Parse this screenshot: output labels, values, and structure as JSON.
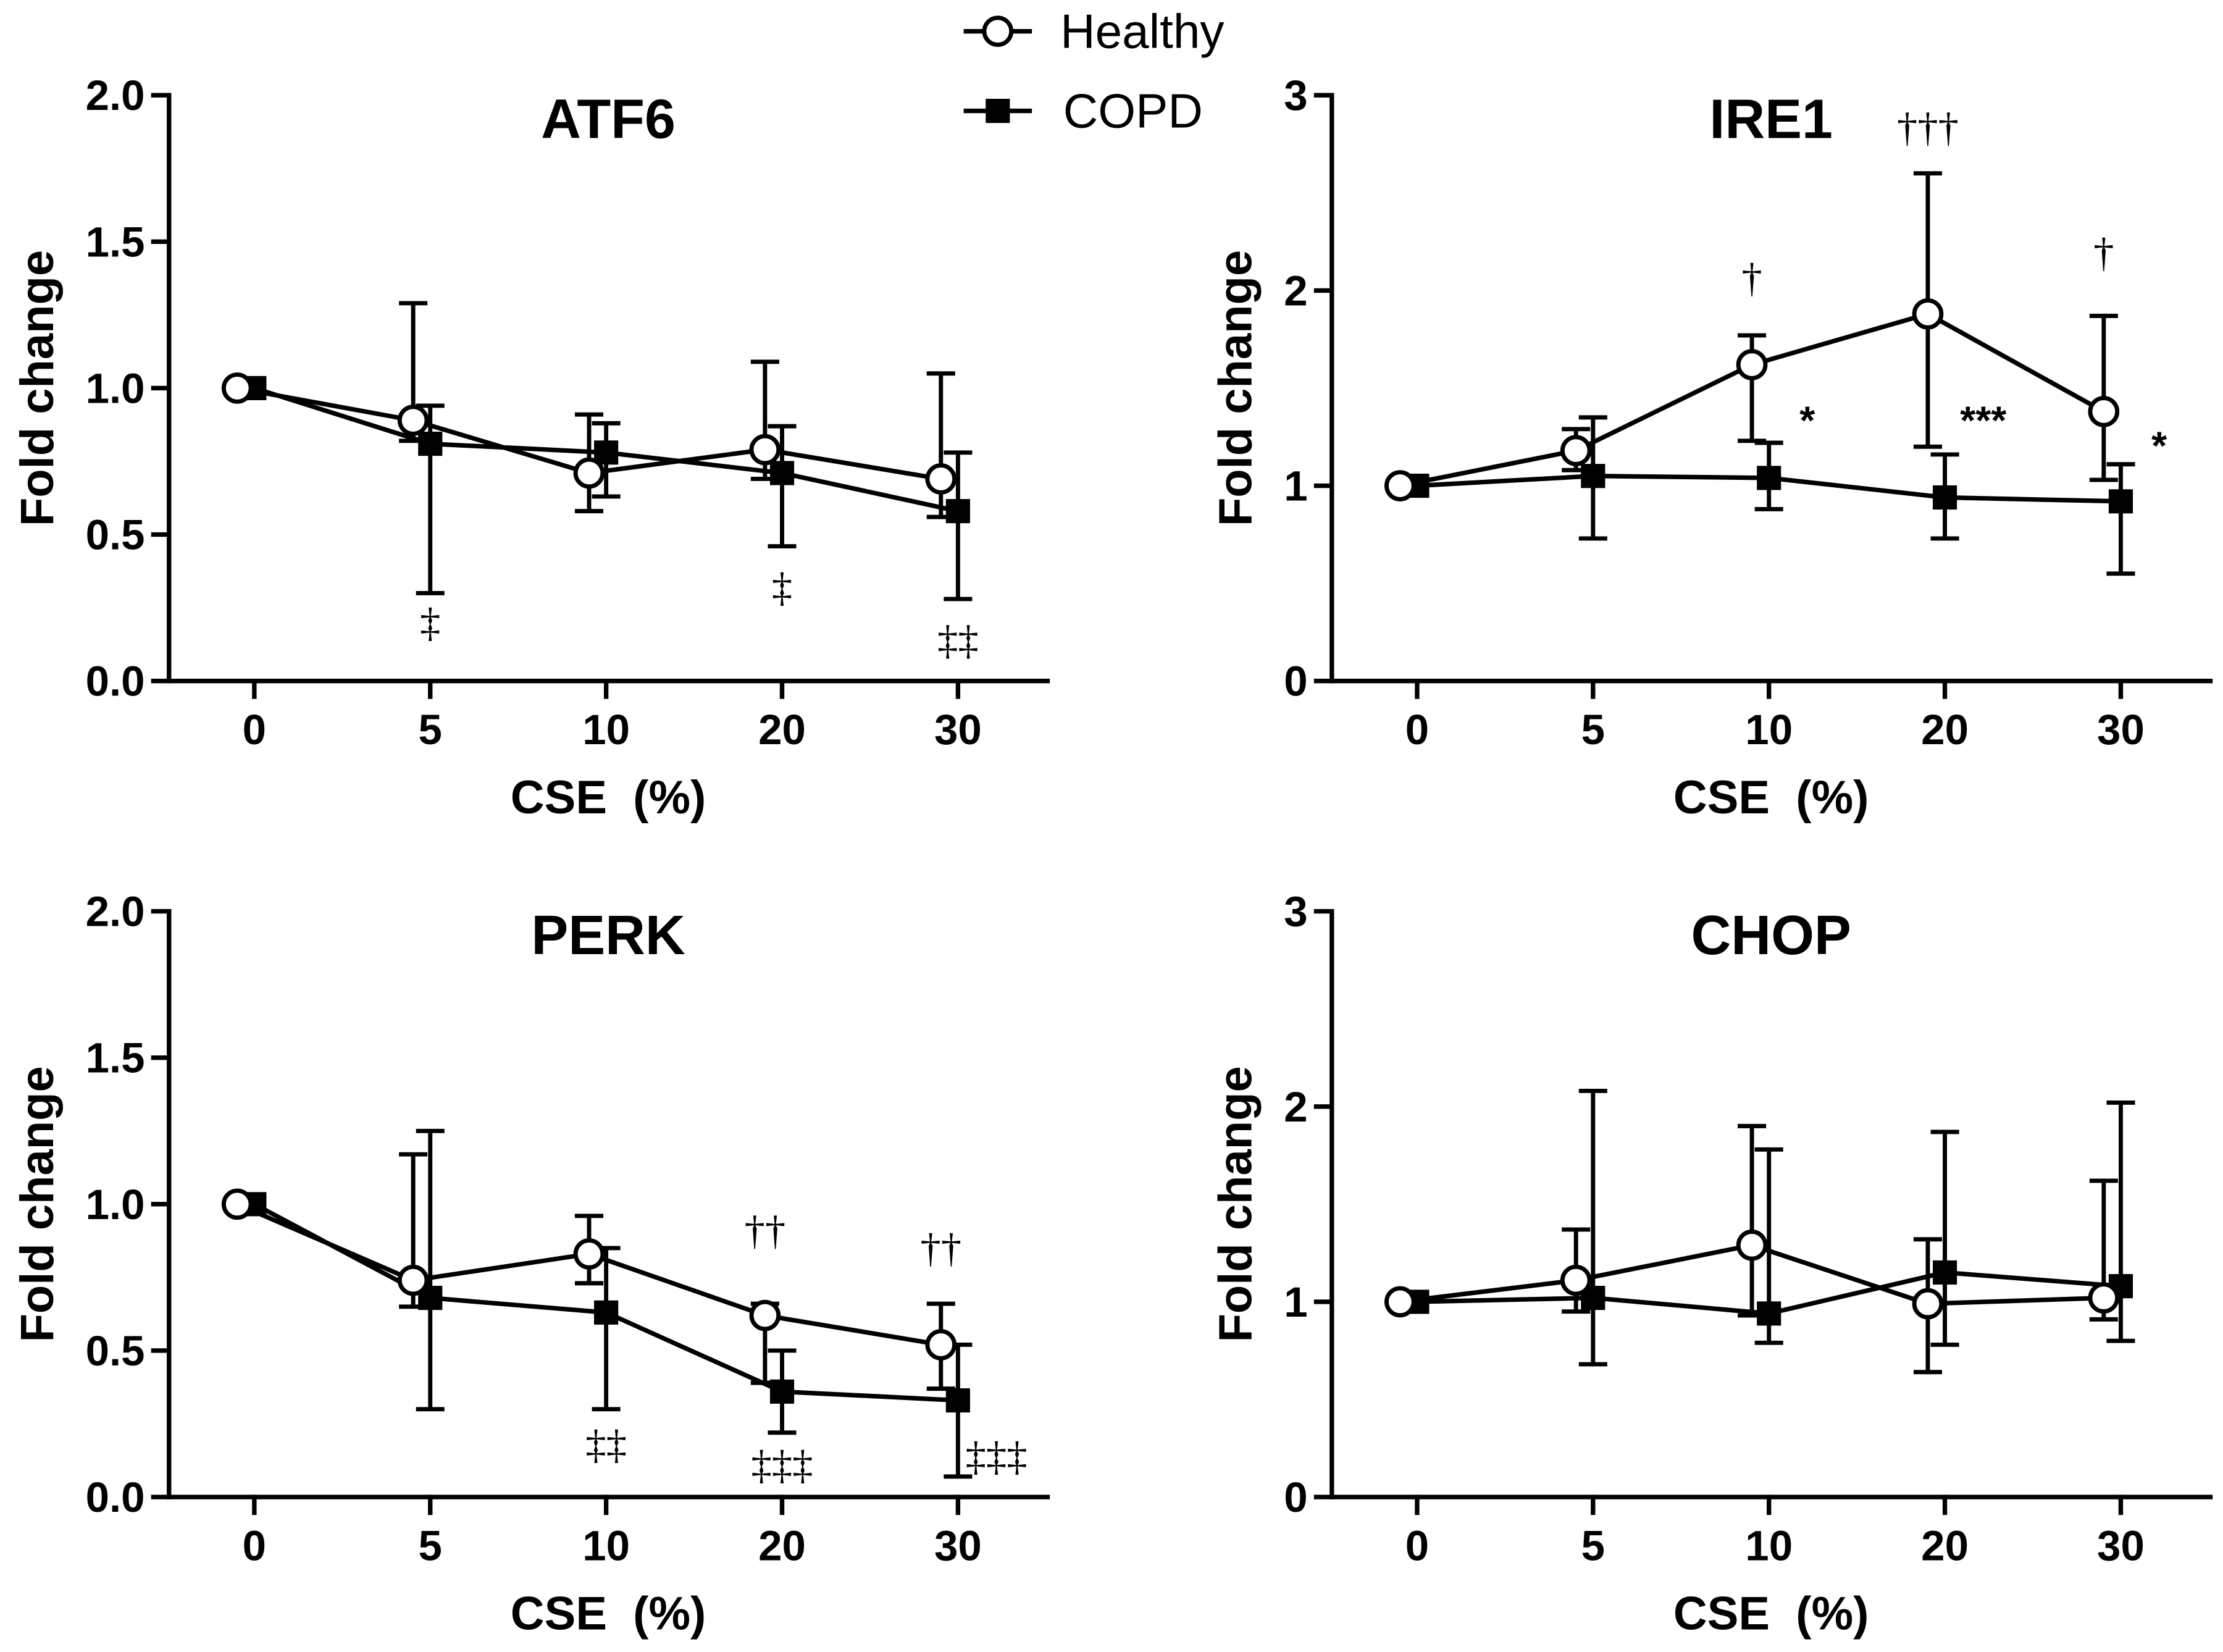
{
  "legend": {
    "placement": "top-center",
    "entries": [
      {
        "label": "Healthy",
        "marker": "open-circle"
      },
      {
        "label": "COPD",
        "marker": "filled-square"
      }
    ]
  },
  "chart_data": [
    {
      "type": "line",
      "title": "ATF6",
      "xlabel": "CSE  (%)",
      "ylabel": "Fold change",
      "categories": [
        "0",
        "5",
        "10",
        "20",
        "30"
      ],
      "ylim": [
        0,
        2
      ],
      "yticks": [
        0,
        0.5,
        1,
        1.5,
        2
      ],
      "ytick_labels": [
        "0.0",
        "0.5",
        "1.0",
        "1.5",
        "2.0"
      ],
      "grid": false,
      "series": [
        {
          "name": "Healthy",
          "marker": "open-circle",
          "color": "#000000",
          "fill": "#ffffff",
          "values": [
            1.0,
            0.89,
            0.71,
            0.79,
            0.69
          ],
          "err_upper": [
            null,
            1.29,
            0.91,
            1.09,
            1.05
          ],
          "err_lower": [
            null,
            0.82,
            0.58,
            0.69,
            0.56
          ]
        },
        {
          "name": "COPD",
          "marker": "filled-square",
          "color": "#000000",
          "fill": "#000000",
          "values": [
            1.0,
            0.81,
            0.78,
            0.71,
            0.58
          ],
          "err_upper": [
            null,
            0.94,
            0.88,
            0.87,
            0.78
          ],
          "err_lower": [
            null,
            0.3,
            0.63,
            0.46,
            0.28
          ]
        }
      ],
      "annotations": [
        {
          "text": "‡",
          "category": "5",
          "y": 0.19,
          "position": "center"
        },
        {
          "text": "‡",
          "category": "20",
          "y": 0.31,
          "position": "center"
        },
        {
          "text": "‡‡",
          "category": "30",
          "y": 0.13,
          "position": "center"
        }
      ]
    },
    {
      "type": "line",
      "title": "IRE1",
      "xlabel": "CSE  (%)",
      "ylabel": "Fold change",
      "categories": [
        "0",
        "5",
        "10",
        "20",
        "30"
      ],
      "ylim": [
        0,
        3
      ],
      "yticks": [
        0,
        1,
        2,
        3
      ],
      "ytick_labels": [
        "0",
        "1",
        "2",
        "3"
      ],
      "grid": false,
      "series": [
        {
          "name": "Healthy",
          "marker": "open-circle",
          "color": "#000000",
          "fill": "#ffffff",
          "values": [
            1.0,
            1.18,
            1.62,
            1.88,
            1.38
          ],
          "err_upper": [
            null,
            1.29,
            1.77,
            2.6,
            1.87
          ],
          "err_lower": [
            null,
            1.08,
            1.23,
            1.2,
            1.03
          ]
        },
        {
          "name": "COPD",
          "marker": "filled-square",
          "color": "#000000",
          "fill": "#000000",
          "values": [
            1.0,
            1.05,
            1.04,
            0.94,
            0.92
          ],
          "err_upper": [
            null,
            1.35,
            1.22,
            1.16,
            1.11
          ],
          "err_lower": [
            null,
            0.73,
            0.88,
            0.73,
            0.55
          ]
        }
      ],
      "annotations": [
        {
          "text": "†",
          "category": "10",
          "y": 2.05,
          "position": "left"
        },
        {
          "text": "*",
          "category": "10",
          "y": 1.38,
          "position": "right"
        },
        {
          "text": "†††",
          "category": "20",
          "y": 2.82,
          "position": "left"
        },
        {
          "text": "***",
          "category": "20",
          "y": 1.38,
          "position": "right"
        },
        {
          "text": "†",
          "category": "30",
          "y": 2.18,
          "position": "left"
        },
        {
          "text": "*",
          "category": "30",
          "y": 1.25,
          "position": "right"
        }
      ]
    },
    {
      "type": "line",
      "title": "PERK",
      "xlabel": "CSE  (%)",
      "ylabel": "Fold change",
      "categories": [
        "0",
        "5",
        "10",
        "20",
        "30"
      ],
      "ylim": [
        0,
        2
      ],
      "yticks": [
        0,
        0.5,
        1,
        1.5,
        2
      ],
      "ytick_labels": [
        "0.0",
        "0.5",
        "1.0",
        "1.5",
        "2.0"
      ],
      "grid": false,
      "series": [
        {
          "name": "Healthy",
          "marker": "open-circle",
          "color": "#000000",
          "fill": "#ffffff",
          "values": [
            1.0,
            0.74,
            0.83,
            0.62,
            0.52
          ],
          "err_upper": [
            null,
            1.17,
            0.96,
            0.66,
            0.66
          ],
          "err_lower": [
            null,
            0.65,
            0.73,
            0.39,
            0.37
          ]
        },
        {
          "name": "COPD",
          "marker": "filled-square",
          "color": "#000000",
          "fill": "#000000",
          "values": [
            1.0,
            0.68,
            0.63,
            0.36,
            0.33
          ],
          "err_upper": [
            null,
            1.25,
            0.85,
            0.5,
            0.52
          ],
          "err_lower": [
            null,
            0.3,
            0.3,
            0.22,
            0.07
          ]
        }
      ],
      "annotations": [
        {
          "text": "††",
          "category": "20",
          "y": 0.9,
          "position": "left"
        },
        {
          "text": "††",
          "category": "30",
          "y": 0.84,
          "position": "left"
        },
        {
          "text": "‡‡",
          "category": "10",
          "y": 0.17,
          "position": "center"
        },
        {
          "text": "‡‡‡",
          "category": "20",
          "y": 0.1,
          "position": "center"
        },
        {
          "text": "‡‡‡",
          "category": "30",
          "y": 0.13,
          "position": "right"
        }
      ]
    },
    {
      "type": "line",
      "title": "CHOP",
      "xlabel": "CSE  (%)",
      "ylabel": "Fold change",
      "categories": [
        "0",
        "5",
        "10",
        "20",
        "30"
      ],
      "ylim": [
        0,
        3
      ],
      "yticks": [
        0,
        1,
        2,
        3
      ],
      "ytick_labels": [
        "0",
        "1",
        "2",
        "3"
      ],
      "grid": false,
      "series": [
        {
          "name": "Healthy",
          "marker": "open-circle",
          "color": "#000000",
          "fill": "#ffffff",
          "values": [
            1.0,
            1.11,
            1.29,
            0.99,
            1.02
          ],
          "err_upper": [
            null,
            1.37,
            1.9,
            1.32,
            1.62
          ],
          "err_lower": [
            null,
            0.95,
            0.93,
            0.64,
            0.91
          ]
        },
        {
          "name": "COPD",
          "marker": "filled-square",
          "color": "#000000",
          "fill": "#000000",
          "values": [
            1.0,
            1.02,
            0.94,
            1.15,
            1.08
          ],
          "err_upper": [
            null,
            2.08,
            1.78,
            1.87,
            2.02
          ],
          "err_lower": [
            null,
            0.68,
            0.79,
            0.78,
            0.8
          ]
        }
      ],
      "annotations": []
    }
  ]
}
